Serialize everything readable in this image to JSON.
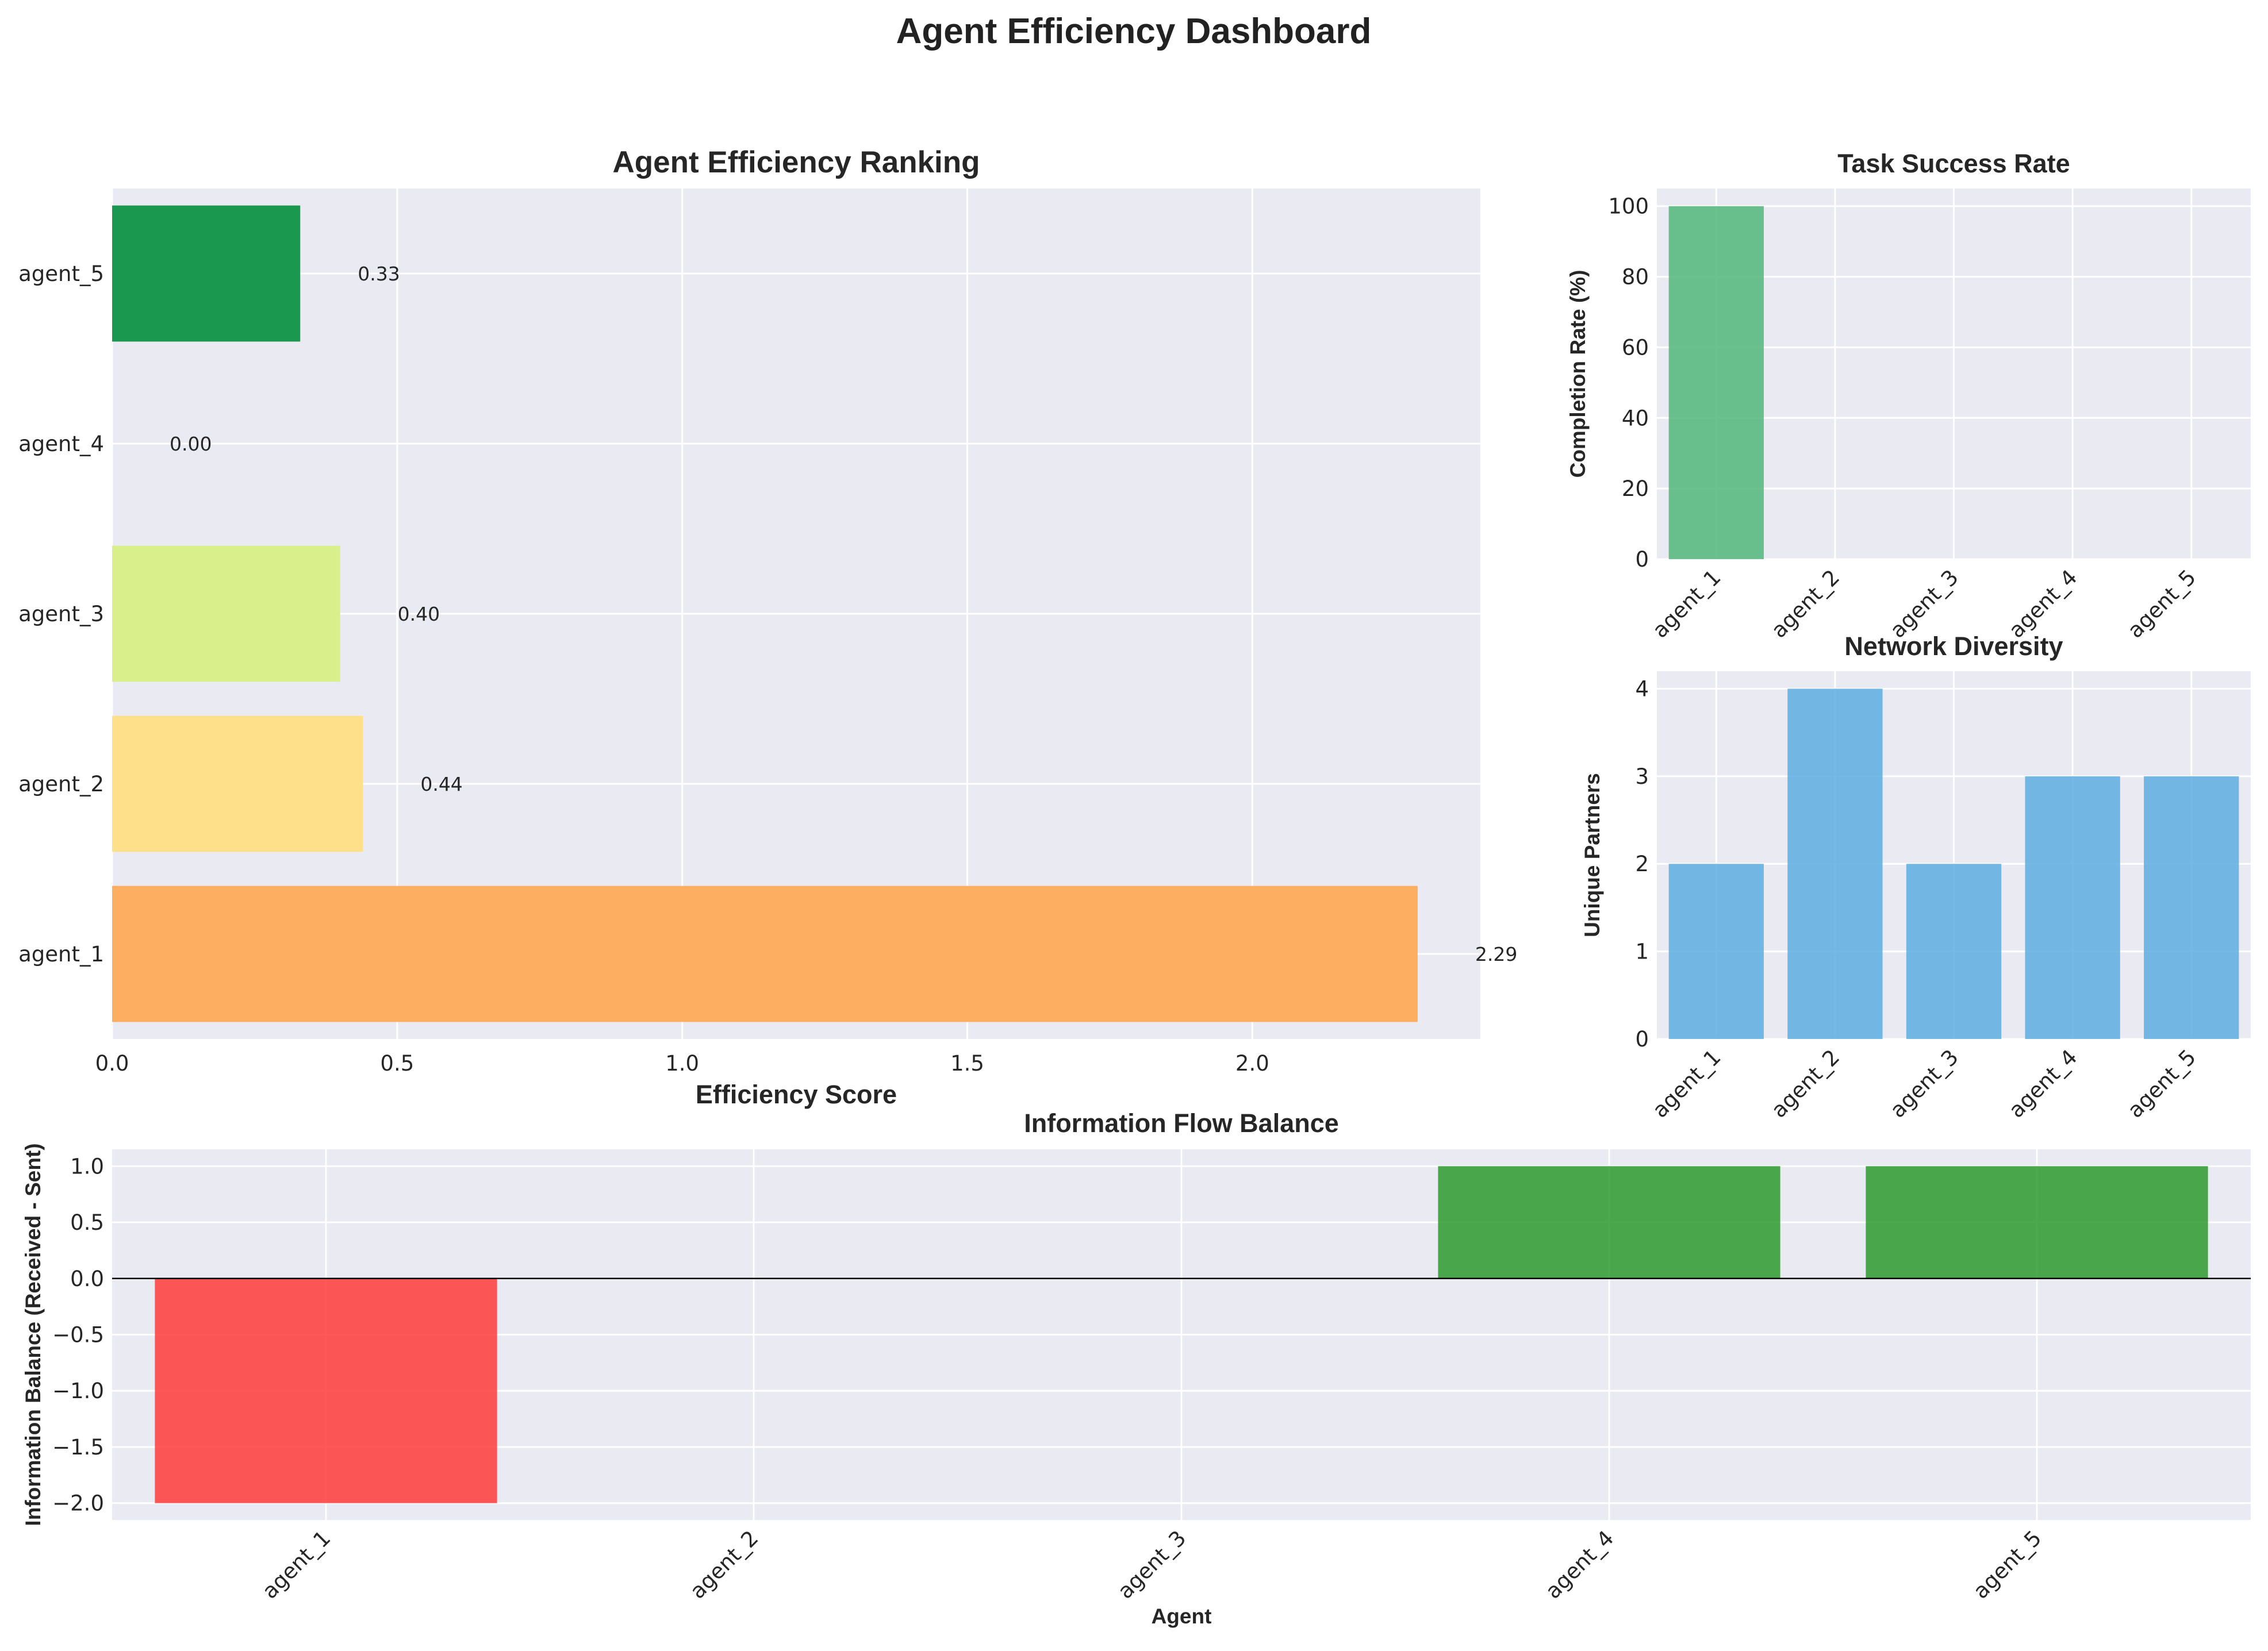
{
  "title": "Agent Efficiency Dashboard",
  "colors": {
    "panel_bg": "#eaeaf2",
    "grid": "#ffffff",
    "zero_line": "#000000",
    "green": "#52b77a",
    "blue": "#5dade2",
    "negative": "#ff3b3b",
    "positive": "#2e9a2e"
  },
  "chart_data": [
    {
      "id": "efficiency",
      "type": "bar",
      "orientation": "horizontal",
      "title": "Agent Efficiency Ranking",
      "xlabel": "Efficiency Score",
      "ylabel": "",
      "categories": [
        "agent_1",
        "agent_2",
        "agent_3",
        "agent_4",
        "agent_5"
      ],
      "values": [
        2.29,
        0.44,
        0.4,
        0.0,
        0.33
      ],
      "value_labels": [
        "2.29",
        "0.44",
        "0.40",
        "0.00",
        "0.33"
      ],
      "colors": [
        "#fdae61",
        "#fee08b",
        "#d9ef8b",
        "#a6d96a",
        "#1a9850"
      ],
      "xlim": [
        0,
        2.4
      ],
      "xticks": [
        0.0,
        0.5,
        1.0,
        1.5,
        2.0
      ],
      "xtick_labels": [
        "0.0",
        "0.5",
        "1.0",
        "1.5",
        "2.0"
      ],
      "grid": true
    },
    {
      "id": "success",
      "type": "bar",
      "title": "Task Success Rate",
      "xlabel": "",
      "ylabel": "Completion Rate (%)",
      "categories": [
        "agent_1",
        "agent_2",
        "agent_3",
        "agent_4",
        "agent_5"
      ],
      "values": [
        100,
        0,
        0,
        0,
        0
      ],
      "ylim": [
        0,
        105
      ],
      "yticks": [
        0,
        20,
        40,
        60,
        80,
        100
      ],
      "ytick_labels": [
        "0",
        "20",
        "40",
        "60",
        "80",
        "100"
      ],
      "grid": true
    },
    {
      "id": "diversity",
      "type": "bar",
      "title": "Network Diversity",
      "xlabel": "",
      "ylabel": "Unique Partners",
      "categories": [
        "agent_1",
        "agent_2",
        "agent_3",
        "agent_4",
        "agent_5"
      ],
      "values": [
        2,
        4,
        2,
        3,
        3
      ],
      "ylim": [
        0,
        4.2
      ],
      "yticks": [
        0,
        1,
        2,
        3,
        4
      ],
      "ytick_labels": [
        "0",
        "1",
        "2",
        "3",
        "4"
      ],
      "grid": true
    },
    {
      "id": "flow",
      "type": "bar",
      "title": "Information Flow Balance",
      "xlabel": "Agent",
      "ylabel": "Information Balance (Received - Sent)",
      "categories": [
        "agent_1",
        "agent_2",
        "agent_3",
        "agent_4",
        "agent_5"
      ],
      "values": [
        -2,
        0,
        0,
        1,
        1
      ],
      "ylim": [
        -2.15,
        1.15
      ],
      "yticks": [
        -2.0,
        -1.5,
        -1.0,
        -0.5,
        0.0,
        0.5,
        1.0
      ],
      "ytick_labels": [
        "−2.0",
        "−1.5",
        "−1.0",
        "−0.5",
        "0.0",
        "0.5",
        "1.0"
      ],
      "grid": true
    }
  ]
}
